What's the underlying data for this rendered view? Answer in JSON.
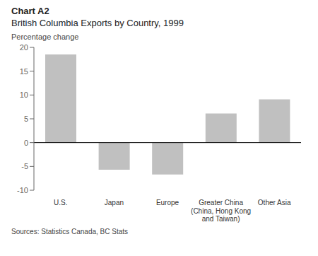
{
  "chart_data": {
    "type": "bar",
    "title": "Chart A2",
    "subtitle": "British Columbia Exports by Country, 1999",
    "ylabel": "Percentage change",
    "annotations": [
      "Sources: Statistics Canada, BC Stats"
    ],
    "categories": [
      "U.S.",
      "Japan",
      "Europe",
      "Greater China\n(China, Hong Kong\nand Taiwan)",
      "Other Asia"
    ],
    "values": [
      18.5,
      -5.7,
      -6.7,
      6.1,
      9.1
    ],
    "color": "#c0c0c0",
    "ylim": [
      -10,
      20
    ],
    "yticks": [
      -10,
      -5,
      0,
      5,
      10,
      15,
      20
    ],
    "grid": false
  }
}
